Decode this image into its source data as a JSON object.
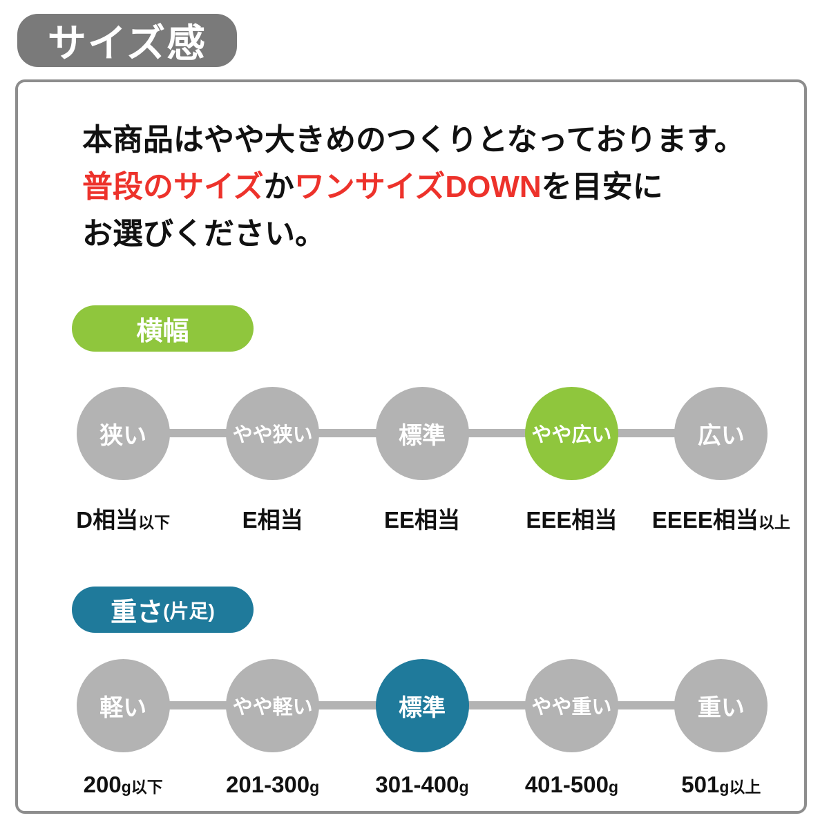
{
  "page_title": "サイズ感",
  "intro": {
    "line1": "本商品はやや大きめのつくりとなっております。",
    "line2_red1": "普段のサイズ",
    "line2_black1": "か",
    "line2_red2": "ワンサイズDOWN",
    "line2_black2": "を目安に",
    "line3": "お選びください。"
  },
  "width_section": {
    "badge": "横幅",
    "scale": [
      {
        "label": "狭い",
        "sub": "D相当",
        "sub_small": "以下",
        "active": false
      },
      {
        "label": "やや狭い",
        "sub": "E相当",
        "sub_small": "",
        "active": false
      },
      {
        "label": "標準",
        "sub": "EE相当",
        "sub_small": "",
        "active": false
      },
      {
        "label": "やや広い",
        "sub": "EEE相当",
        "sub_small": "",
        "active": true
      },
      {
        "label": "広い",
        "sub": "EEEE相当",
        "sub_small": "以上",
        "active": false
      }
    ]
  },
  "weight_section": {
    "badge": "重さ",
    "badge_small": "(片足)",
    "scale": [
      {
        "label": "軽い",
        "sub": "200",
        "sub_small": "g以下",
        "active": false
      },
      {
        "label": "やや軽い",
        "sub": "201-300",
        "sub_small": "g",
        "active": false
      },
      {
        "label": "標準",
        "sub": "301-400",
        "sub_small": "g",
        "active": true
      },
      {
        "label": "やや重い",
        "sub": "401-500",
        "sub_small": "g",
        "active": false
      },
      {
        "label": "重い",
        "sub": "501",
        "sub_small": "g以上",
        "active": false
      }
    ]
  },
  "colors": {
    "title_bg": "#7a7a7a",
    "box_border": "#8d8d8d",
    "circle_gray": "#b3b3b3",
    "accent_green": "#8fc63d",
    "accent_teal": "#1f7a9b",
    "accent_red": "#ed322b",
    "text_black": "#111111"
  }
}
